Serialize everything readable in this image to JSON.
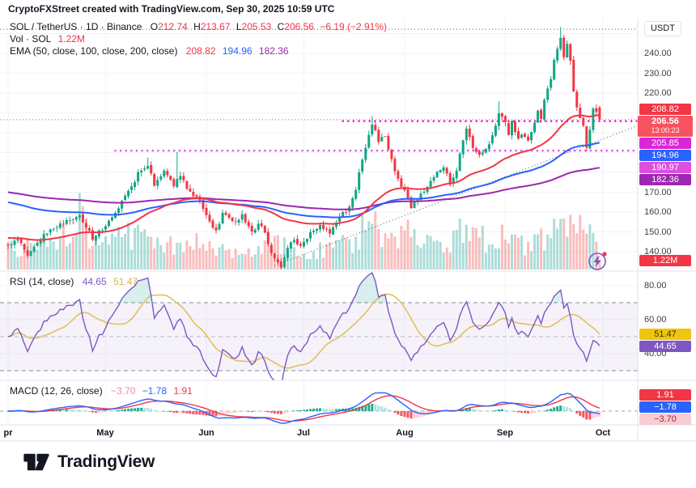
{
  "header": {
    "text": "CryptoFXStreet created with TradingView.com, Sep 30, 2025 10:59 UTC"
  },
  "legend": {
    "title": "SOL / TetherUS · 1D · Binance",
    "o_label": "O",
    "o_value": "212.74",
    "h_label": "H",
    "h_value": "213.67",
    "l_label": "L",
    "l_value": "205.53",
    "c_label": "C",
    "c_value": "206.56",
    "change_value": "−6.19 (−2.91%)",
    "vol_label": "Vol · SOL",
    "vol_value": "1.22M",
    "ema_label": "EMA (50, close, 100, close, 200, close)",
    "ema50_value": "208.82",
    "ema100_value": "194.96",
    "ema200_value": "182.36",
    "rsi_label": "RSI (14, close)",
    "rsi_value": "44.65",
    "rsi_ma_value": "51.47",
    "macd_label": "MACD (12, 26, close)",
    "macd_hist_value": "−3.70",
    "macd_value": "−1.78",
    "macd_signal_value": "1.91"
  },
  "axis": {
    "currency": "USDT",
    "price_ticks": [
      {
        "label": "240.00",
        "price": 240
      },
      {
        "label": "230.00",
        "price": 230
      },
      {
        "label": "220.00",
        "price": 220
      },
      {
        "label": "170.00",
        "price": 170
      },
      {
        "label": "160.00",
        "price": 160
      },
      {
        "label": "150.00",
        "price": 150
      },
      {
        "label": "140.00",
        "price": 140
      }
    ],
    "rsi_ticks": [
      {
        "label": "80.00",
        "value": 80
      },
      {
        "label": "60.00",
        "value": 60
      },
      {
        "label": "40.00",
        "value": 40
      }
    ],
    "months": [
      {
        "label": "pr",
        "day": 0
      },
      {
        "label": "May",
        "day": 30
      },
      {
        "label": "Jun",
        "day": 61
      },
      {
        "label": "Jul",
        "day": 91
      },
      {
        "label": "Aug",
        "day": 122
      },
      {
        "label": "Sep",
        "day": 153
      },
      {
        "label": "Oct",
        "day": 183
      }
    ],
    "price_badges": [
      {
        "id": "ema50",
        "text": "208.82",
        "bg": "#f23645",
        "fg": "#ffffff"
      },
      {
        "id": "last",
        "text": "206.56",
        "sub": "13:00:23",
        "bg": "#f7525f",
        "fg": "#ffffff"
      },
      {
        "id": "level-high",
        "text": "205.85",
        "bg": "#d926d9",
        "fg": "#ffffff"
      },
      {
        "id": "ema100",
        "text": "194.96",
        "bg": "#2962ff",
        "fg": "#ffffff"
      },
      {
        "id": "level-low",
        "text": "190.97",
        "bg": "#de4fde",
        "fg": "#ffffff"
      },
      {
        "id": "ema200",
        "text": "182.36",
        "bg": "#9c27b0",
        "fg": "#ffffff"
      },
      {
        "id": "volume",
        "text": "1.22M",
        "bg": "#f23645",
        "fg": "#ffffff"
      }
    ],
    "rsi_badges": [
      {
        "id": "rsi-ma",
        "text": "51.47",
        "bg": "#f0c50f",
        "fg": "#3a3000"
      },
      {
        "id": "rsi",
        "text": "44.65",
        "bg": "#7e57c2",
        "fg": "#ffffff"
      }
    ],
    "macd_badges": [
      {
        "id": "macd-signal",
        "text": "1.91",
        "bg": "#f23645",
        "fg": "#ffffff"
      },
      {
        "id": "macd-line",
        "text": "−1.78",
        "bg": "#2962ff",
        "fg": "#ffffff"
      },
      {
        "id": "macd-hist",
        "text": "−3.70",
        "bg": "#f8ccd2",
        "fg": "#9c2430"
      }
    ]
  },
  "footer": {
    "brand": "TradingView"
  },
  "chart_data": {
    "type": "candlestick",
    "symbol": "SOL/TetherUS",
    "timeframe": "1D",
    "exchange": "Binance",
    "last_candle": {
      "open": 212.74,
      "high": 213.67,
      "low": 205.53,
      "close": 206.56,
      "change": -6.19,
      "change_pct": -2.91,
      "volume": "1.22M"
    },
    "price_axis_range": {
      "top_label": 240,
      "bottom_label": 140,
      "step": 10
    },
    "date_range": {
      "start": "Apr",
      "end": "Oct"
    },
    "price_anchors": [
      [
        0,
        143
      ],
      [
        3,
        147
      ],
      [
        6,
        139
      ],
      [
        9,
        144
      ],
      [
        12,
        150
      ],
      [
        16,
        154
      ],
      [
        20,
        156
      ],
      [
        22,
        158
      ],
      [
        26,
        147
      ],
      [
        29,
        151
      ],
      [
        33,
        160
      ],
      [
        37,
        170
      ],
      [
        40,
        179
      ],
      [
        43,
        184
      ],
      [
        45,
        174
      ],
      [
        48,
        181
      ],
      [
        51,
        174
      ],
      [
        53,
        178
      ],
      [
        56,
        170
      ],
      [
        59,
        165
      ],
      [
        62,
        155
      ],
      [
        64,
        150
      ],
      [
        66,
        159
      ],
      [
        69,
        155
      ],
      [
        72,
        158
      ],
      [
        75,
        151
      ],
      [
        78,
        154
      ],
      [
        80,
        144
      ],
      [
        82,
        136
      ],
      [
        84,
        133
      ],
      [
        86,
        142
      ],
      [
        88,
        146
      ],
      [
        90,
        143
      ],
      [
        93,
        149
      ],
      [
        96,
        153
      ],
      [
        99,
        150
      ],
      [
        102,
        157
      ],
      [
        105,
        163
      ],
      [
        107,
        172
      ],
      [
        109,
        186
      ],
      [
        111,
        199
      ],
      [
        112,
        205
      ],
      [
        114,
        196
      ],
      [
        116,
        199
      ],
      [
        118,
        186
      ],
      [
        120,
        177
      ],
      [
        122,
        170
      ],
      [
        124,
        162
      ],
      [
        126,
        166
      ],
      [
        129,
        173
      ],
      [
        132,
        180
      ],
      [
        134,
        183
      ],
      [
        136,
        175
      ],
      [
        138,
        181
      ],
      [
        140,
        196
      ],
      [
        141,
        202
      ],
      [
        143,
        193
      ],
      [
        145,
        188
      ],
      [
        146,
        190
      ],
      [
        148,
        195
      ],
      [
        150,
        203
      ],
      [
        151,
        209
      ],
      [
        153,
        206
      ],
      [
        154,
        199
      ],
      [
        155,
        206
      ],
      [
        157,
        196
      ],
      [
        158,
        199
      ],
      [
        160,
        195
      ],
      [
        161,
        200
      ],
      [
        162,
        205
      ],
      [
        163,
        210
      ],
      [
        164,
        208
      ],
      [
        165,
        216
      ],
      [
        166,
        222
      ],
      [
        167,
        228
      ],
      [
        168,
        236
      ],
      [
        169,
        243
      ],
      [
        170,
        248
      ],
      [
        171,
        239
      ],
      [
        172,
        244
      ],
      [
        173,
        236
      ],
      [
        174,
        221
      ],
      [
        175,
        212
      ],
      [
        176,
        207
      ],
      [
        177,
        203
      ],
      [
        178,
        193
      ],
      [
        179,
        202
      ],
      [
        180,
        212
      ],
      [
        181,
        211
      ],
      [
        182,
        206.56
      ]
    ],
    "wick_overrides": {
      "43": {
        "h": 187.5
      },
      "52": {
        "h": 190.3
      },
      "84": {
        "l": 131.2
      },
      "112": {
        "h": 208.3
      },
      "151": {
        "h": 215.8
      },
      "170": {
        "h": 253.4
      },
      "178": {
        "l": 190.5
      },
      "182": {
        "o": 212.74,
        "h": 213.67,
        "l": 205.53,
        "c": 206.56
      }
    },
    "volume_anchors_M": [
      [
        0,
        2.6
      ],
      [
        8,
        3.2
      ],
      [
        15,
        2.6
      ],
      [
        22,
        7.0
      ],
      [
        25,
        3.6
      ],
      [
        33,
        3.8
      ],
      [
        40,
        4.2
      ],
      [
        45,
        3.2
      ],
      [
        52,
        2.8
      ],
      [
        58,
        3.4
      ],
      [
        62,
        2.6
      ],
      [
        70,
        2.2
      ],
      [
        78,
        2.6
      ],
      [
        82,
        3.8
      ],
      [
        84,
        3.2
      ],
      [
        90,
        2.0
      ],
      [
        96,
        2.4
      ],
      [
        102,
        2.8
      ],
      [
        107,
        3.6
      ],
      [
        110,
        5.8
      ],
      [
        112,
        5.2
      ],
      [
        116,
        4.4
      ],
      [
        120,
        3.6
      ],
      [
        124,
        4.8
      ],
      [
        128,
        3.2
      ],
      [
        133,
        3.0
      ],
      [
        137,
        3.4
      ],
      [
        140,
        5.2
      ],
      [
        142,
        5.6
      ],
      [
        145,
        4.0
      ],
      [
        148,
        3.2
      ],
      [
        151,
        4.4
      ],
      [
        154,
        3.6
      ],
      [
        158,
        3.2
      ],
      [
        161,
        3.0
      ],
      [
        164,
        3.6
      ],
      [
        167,
        4.2
      ],
      [
        169,
        4.8
      ],
      [
        170,
        5.2
      ],
      [
        172,
        4.2
      ],
      [
        174,
        5.6
      ],
      [
        176,
        4.8
      ],
      [
        178,
        6.4
      ],
      [
        179,
        4.6
      ],
      [
        180,
        4.2
      ],
      [
        181,
        3.0
      ],
      [
        182,
        1.22
      ]
    ],
    "volume_scale_max_M": 7.8,
    "ema": {
      "periods": [
        50,
        100,
        200
      ],
      "start_values": [
        147,
        165,
        170
      ],
      "end_values": [
        208.82,
        194.96,
        182.36
      ],
      "colors": [
        "#f23645",
        "#2962ff",
        "#9c27b0"
      ]
    },
    "levels": {
      "ath_dotted": {
        "price": 252.2,
        "full_width": true
      },
      "current_price": {
        "price": 206.56
      },
      "magenta_high": {
        "price": 205.85,
        "from_day": 103
      },
      "magenta_low": {
        "price": 190.97,
        "from_day": 33
      }
    },
    "trendline": {
      "from_day": 82,
      "from_price": 133,
      "to_day": 196,
      "to_price": 205
    },
    "rsi": {
      "period": 14,
      "last": 44.65,
      "ma_last": 51.47,
      "overbought": 70,
      "mid": 50,
      "oversold": 30,
      "line_color": "#7e57c2",
      "ma_color": "#e0c25a"
    },
    "macd": {
      "fast": 12,
      "slow": 26,
      "signal_period": 9,
      "last_macd": -1.78,
      "last_signal": 1.91,
      "last_hist": -3.7,
      "line_color": "#2962ff",
      "signal_color": "#f23645"
    },
    "candle_colors": {
      "up": "#11a683",
      "down": "#f23645"
    }
  }
}
